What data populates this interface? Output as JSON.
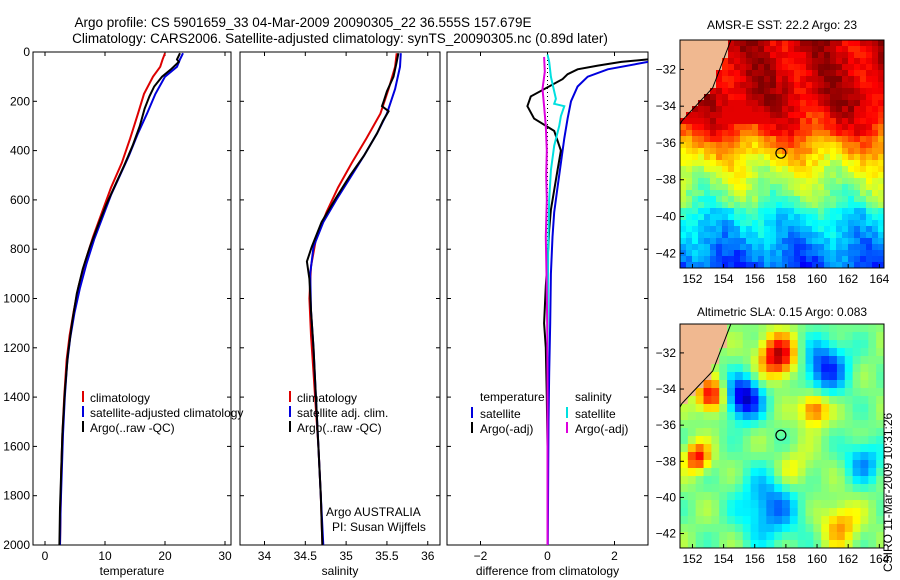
{
  "title_line1": "Argo profile: CS 5901659_33 04-Mar-2009 20090305_22 36.555S 157.679E",
  "title_line2": "Climatology: CARS2006. Satellite-adjusted climatology: synTS_20090305.nc (0.89d later)",
  "side_label": "CSIRO 11-Mar-2009 10:31:26",
  "colors": {
    "red": "#dd0000",
    "blue": "#0000dd",
    "black": "#000000",
    "cyan": "#00e0e0",
    "magenta": "#dd00dd",
    "land": "#f0b890"
  },
  "chart_data": [
    {
      "type": "line",
      "id": "temperature",
      "xlabel": "temperature",
      "ylim": [
        2000,
        0
      ],
      "xlim": [
        -2,
        31
      ],
      "xticks": [
        0,
        10,
        20,
        30
      ],
      "yticks": [
        0,
        200,
        400,
        600,
        800,
        1000,
        1200,
        1400,
        1600,
        1800,
        2000
      ],
      "legend": [
        "climatology",
        "satellite-adjusted climatology",
        "Argo(..raw -QC)"
      ],
      "series": [
        {
          "name": "climatology",
          "color": "red",
          "points": [
            [
              20,
              5
            ],
            [
              19.6,
              30
            ],
            [
              19.2,
              60
            ],
            [
              18,
              100
            ],
            [
              16.5,
              170
            ],
            [
              15.5,
              250
            ],
            [
              14.2,
              350
            ],
            [
              12.8,
              450
            ],
            [
              11,
              550
            ],
            [
              9.5,
              650
            ],
            [
              8,
              750
            ],
            [
              6.7,
              850
            ],
            [
              5.6,
              950
            ],
            [
              4.8,
              1050
            ],
            [
              4.1,
              1150
            ],
            [
              3.6,
              1250
            ],
            [
              3.2,
              1400
            ],
            [
              2.9,
              1550
            ],
            [
              2.7,
              1700
            ],
            [
              2.6,
              1850
            ],
            [
              2.5,
              2000
            ]
          ]
        },
        {
          "name": "satellite-adjusted climatology",
          "color": "blue",
          "points": [
            [
              23,
              5
            ],
            [
              22.5,
              30
            ],
            [
              22,
              60
            ],
            [
              20,
              100
            ],
            [
              18.4,
              170
            ],
            [
              17,
              250
            ],
            [
              15.5,
              330
            ],
            [
              14,
              420
            ],
            [
              12.5,
              500
            ],
            [
              11,
              580
            ],
            [
              9.6,
              670
            ],
            [
              8.2,
              760
            ],
            [
              6.9,
              860
            ],
            [
              5.8,
              960
            ],
            [
              4.9,
              1060
            ],
            [
              4.2,
              1160
            ],
            [
              3.7,
              1260
            ],
            [
              3.3,
              1400
            ],
            [
              3,
              1550
            ],
            [
              2.8,
              1700
            ],
            [
              2.6,
              1850
            ],
            [
              2.5,
              2000
            ]
          ]
        },
        {
          "name": "Argo(..raw -QC)",
          "color": "black",
          "points": [
            [
              22.5,
              5
            ],
            [
              22,
              30
            ],
            [
              22.3,
              40
            ],
            [
              21,
              70
            ],
            [
              19.5,
              100
            ],
            [
              18.2,
              140
            ],
            [
              17.4,
              180
            ],
            [
              16.6,
              230
            ],
            [
              15.8,
              300
            ],
            [
              14.6,
              380
            ],
            [
              13.2,
              460
            ],
            [
              11.7,
              540
            ],
            [
              10.2,
              620
            ],
            [
              8.9,
              700
            ],
            [
              7.5,
              790
            ],
            [
              6.3,
              880
            ],
            [
              5.3,
              980
            ],
            [
              4.5,
              1100
            ],
            [
              3.8,
              1230
            ],
            [
              3.3,
              1380
            ],
            [
              2.9,
              1550
            ],
            [
              2.7,
              1700
            ],
            [
              2.5,
              1850
            ],
            [
              2.4,
              2000
            ]
          ]
        }
      ]
    },
    {
      "type": "line",
      "id": "salinity",
      "xlabel": "salinity",
      "ylim": [
        2000,
        0
      ],
      "xlim": [
        33.7,
        36.15
      ],
      "xticks": [
        34,
        34.5,
        35,
        35.5,
        36
      ],
      "yticks": [
        0,
        200,
        400,
        600,
        800,
        1000,
        1200,
        1400,
        1600,
        1800,
        2000
      ],
      "legend": [
        "climatology",
        "satellite adj. clim.",
        "Argo(..raw -QC)"
      ],
      "annotation": [
        "Argo AUSTRALIA",
        "PI: Susan Wijffels"
      ],
      "series": [
        {
          "name": "climatology",
          "color": "red",
          "points": [
            [
              35.62,
              5
            ],
            [
              35.6,
              60
            ],
            [
              35.52,
              150
            ],
            [
              35.42,
              250
            ],
            [
              35.25,
              350
            ],
            [
              35.07,
              450
            ],
            [
              34.9,
              550
            ],
            [
              34.76,
              650
            ],
            [
              34.63,
              760
            ],
            [
              34.57,
              870
            ],
            [
              34.55,
              1000
            ],
            [
              34.57,
              1150
            ],
            [
              34.6,
              1300
            ],
            [
              34.63,
              1450
            ],
            [
              34.66,
              1600
            ],
            [
              34.69,
              1800
            ],
            [
              34.71,
              2000
            ]
          ]
        },
        {
          "name": "satellite adj. clim.",
          "color": "blue",
          "points": [
            [
              35.67,
              5
            ],
            [
              35.66,
              60
            ],
            [
              35.6,
              150
            ],
            [
              35.5,
              250
            ],
            [
              35.38,
              330
            ],
            [
              35.22,
              420
            ],
            [
              35.05,
              510
            ],
            [
              34.88,
              600
            ],
            [
              34.72,
              690
            ],
            [
              34.6,
              790
            ],
            [
              34.56,
              900
            ],
            [
              34.57,
              1050
            ],
            [
              34.6,
              1200
            ],
            [
              34.63,
              1400
            ],
            [
              34.66,
              1600
            ],
            [
              34.69,
              1800
            ],
            [
              34.72,
              2000
            ]
          ]
        },
        {
          "name": "Argo(..raw -QC)",
          "color": "black",
          "points": [
            [
              35.64,
              5
            ],
            [
              35.62,
              40
            ],
            [
              35.58,
              100
            ],
            [
              35.5,
              160
            ],
            [
              35.46,
              200
            ],
            [
              35.44,
              220
            ],
            [
              35.52,
              240
            ],
            [
              35.45,
              280
            ],
            [
              35.38,
              330
            ],
            [
              35.22,
              420
            ],
            [
              35.05,
              500
            ],
            [
              34.88,
              590
            ],
            [
              34.7,
              690
            ],
            [
              34.58,
              790
            ],
            [
              34.52,
              850
            ],
            [
              34.55,
              920
            ],
            [
              34.57,
              1050
            ],
            [
              34.6,
              1200
            ],
            [
              34.63,
              1400
            ],
            [
              34.66,
              1600
            ],
            [
              34.69,
              1800
            ],
            [
              34.71,
              2000
            ]
          ]
        }
      ]
    },
    {
      "type": "line",
      "id": "difference",
      "xlabel": "difference from climatology",
      "ylim": [
        2000,
        0
      ],
      "xlim": [
        -3,
        3
      ],
      "xticks": [
        -2,
        0,
        2
      ],
      "yticks": [
        0,
        200,
        400,
        600,
        800,
        1000,
        1200,
        1400,
        1600,
        1800,
        2000
      ],
      "legend_groups": [
        {
          "heading": "temperature",
          "items": [
            {
              "label": "satellite",
              "color": "blue"
            },
            {
              "label": "Argo(-adj)",
              "color": "black"
            }
          ]
        },
        {
          "heading": "salinity",
          "items": [
            {
              "label": "satellite",
              "color": "cyan"
            },
            {
              "label": "Argo(-adj)",
              "color": "magenta"
            }
          ]
        }
      ],
      "series": [
        {
          "name": "temperature satellite",
          "color": "blue",
          "points": [
            [
              3,
              40
            ],
            [
              1.8,
              70
            ],
            [
              1.2,
              100
            ],
            [
              0.9,
              140
            ],
            [
              0.7,
              200
            ],
            [
              0.6,
              270
            ],
            [
              0.5,
              350
            ],
            [
              0.4,
              450
            ],
            [
              0.3,
              550
            ],
            [
              0.2,
              650
            ],
            [
              0.15,
              750
            ],
            [
              0.1,
              900
            ],
            [
              0.08,
              1100
            ],
            [
              0.05,
              1300
            ],
            [
              0.03,
              1500
            ],
            [
              0.02,
              1700
            ],
            [
              0.01,
              2000
            ]
          ]
        },
        {
          "name": "temperature Argo(-adj)",
          "color": "black",
          "points": [
            [
              3,
              30
            ],
            [
              2.2,
              40
            ],
            [
              1.5,
              55
            ],
            [
              0.9,
              70
            ],
            [
              0.6,
              90
            ],
            [
              0.45,
              110
            ],
            [
              -0.5,
              180
            ],
            [
              -0.6,
              220
            ],
            [
              -0.4,
              270
            ],
            [
              0.2,
              320
            ],
            [
              0.4,
              400
            ],
            [
              0.3,
              480
            ],
            [
              0.2,
              560
            ],
            [
              0.1,
              640
            ],
            [
              0.05,
              720
            ],
            [
              0.02,
              800
            ],
            [
              -0.05,
              950
            ],
            [
              -0.1,
              1100
            ],
            [
              -0.05,
              1200
            ],
            [
              -0.02,
              1400
            ],
            [
              0,
              1600
            ],
            [
              0,
              2000
            ]
          ]
        },
        {
          "name": "salinity satellite",
          "color": "cyan",
          "points": [
            [
              0,
              10
            ],
            [
              0.05,
              40
            ],
            [
              0.1,
              100
            ],
            [
              0.2,
              160
            ],
            [
              0.25,
              190
            ],
            [
              0.2,
              210
            ],
            [
              0.5,
              220
            ],
            [
              0.4,
              260
            ],
            [
              0.35,
              300
            ],
            [
              0.2,
              380
            ],
            [
              0.1,
              480
            ],
            [
              0.05,
              600
            ],
            [
              0.02,
              800
            ],
            [
              0.01,
              1000
            ],
            [
              0,
              1300
            ],
            [
              0,
              1600
            ],
            [
              0,
              2000
            ]
          ]
        },
        {
          "name": "salinity Argo(-adj)",
          "color": "magenta",
          "points": [
            [
              -0.1,
              20
            ],
            [
              -0.08,
              80
            ],
            [
              -0.15,
              150
            ],
            [
              -0.1,
              220
            ],
            [
              -0.05,
              300
            ],
            [
              -0.02,
              400
            ],
            [
              -0.04,
              500
            ],
            [
              -0.02,
              600
            ],
            [
              -0.05,
              750
            ],
            [
              -0.03,
              900
            ],
            [
              -0.01,
              1100
            ],
            [
              0,
              1300
            ],
            [
              0,
              1600
            ],
            [
              0,
              2000
            ]
          ]
        }
      ]
    },
    {
      "type": "heatmap",
      "id": "sst",
      "title": "AMSR-E SST: 22.2 Argo: 23",
      "xlim": [
        151.2,
        164.3
      ],
      "ylim": [
        -42.8,
        -30.4
      ],
      "xticks": [
        152,
        154,
        156,
        158,
        160,
        162,
        164
      ],
      "yticks": [
        -32,
        -34,
        -36,
        -38,
        -40,
        -42
      ],
      "marker": [
        157.68,
        -36.555
      ]
    },
    {
      "type": "heatmap",
      "id": "sla",
      "title": "Altimetric SLA: 0.15 Argo: 0.083",
      "xlim": [
        151.2,
        164.3
      ],
      "ylim": [
        -42.8,
        -30.4
      ],
      "xticks": [
        152,
        154,
        156,
        158,
        160,
        162,
        164
      ],
      "yticks": [
        -32,
        -34,
        -36,
        -38,
        -40,
        -42
      ],
      "marker": [
        157.68,
        -36.555
      ]
    }
  ]
}
